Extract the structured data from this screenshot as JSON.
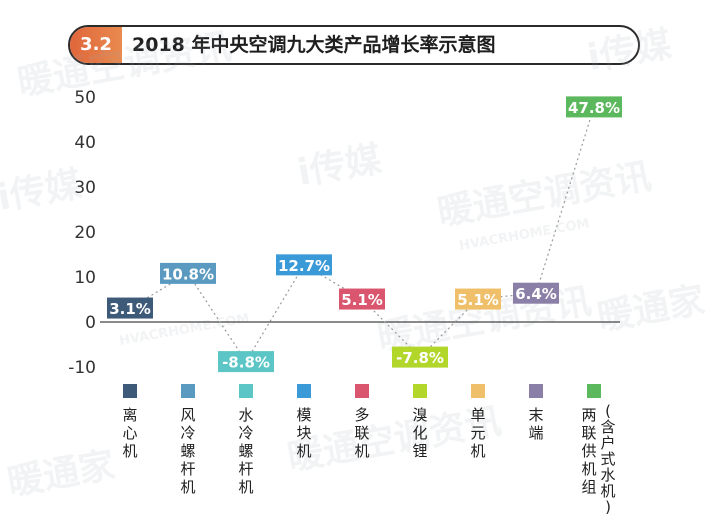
{
  "header": {
    "badge": "3.2",
    "title": "2018 年中央空调九大类产品增长率示意图"
  },
  "watermarks": [
    "暖通空调资讯",
    "HVACRHOME.COM",
    "i传媒",
    "暖通家"
  ],
  "chart_data": {
    "type": "line",
    "title": "2018 年中央空调九大类产品增长率示意图",
    "xlabel": "",
    "ylabel": "",
    "ylim": [
      -10,
      50
    ],
    "yticks": [
      -10,
      0,
      10,
      20,
      30,
      40,
      50
    ],
    "grid": false,
    "legend": "bottom",
    "categories": [
      "离心机",
      "风冷螺杆机",
      "水冷螺杆机",
      "模块机",
      "多联机",
      "溴化锂",
      "单元机",
      "末端",
      "两联供机组(含户式水机)"
    ],
    "category_lines": [
      [
        "离",
        "心",
        "机"
      ],
      [
        "风",
        "冷",
        "螺",
        "杆",
        "机"
      ],
      [
        "水",
        "冷",
        "螺",
        "杆",
        "机"
      ],
      [
        "模",
        "块",
        "机"
      ],
      [
        "多",
        "联",
        "机"
      ],
      [
        "溴",
        "化",
        "锂"
      ],
      [
        "单",
        "元",
        "机"
      ],
      [
        "末",
        "端"
      ],
      [
        "两",
        "联",
        "供",
        "机",
        "组"
      ]
    ],
    "category_sub_lines": [
      [],
      [],
      [],
      [],
      [],
      [],
      [],
      [],
      [
        "(",
        "含",
        "户",
        "式",
        "水",
        "机",
        ")"
      ]
    ],
    "values": [
      3.1,
      10.8,
      -8.8,
      12.7,
      5.1,
      -7.8,
      5.1,
      6.4,
      47.8
    ],
    "labels": [
      "3.1%",
      "10.8%",
      "-8.8%",
      "12.7%",
      "5.1%",
      "-7.8%",
      "5.1%",
      "6.4%",
      "47.8%"
    ],
    "colors": [
      "#3d5a78",
      "#5a9ac0",
      "#5cc6c6",
      "#3a9ad8",
      "#d9566e",
      "#b3d62a",
      "#efbf6a",
      "#8a7fa6",
      "#5cb85c"
    ]
  }
}
